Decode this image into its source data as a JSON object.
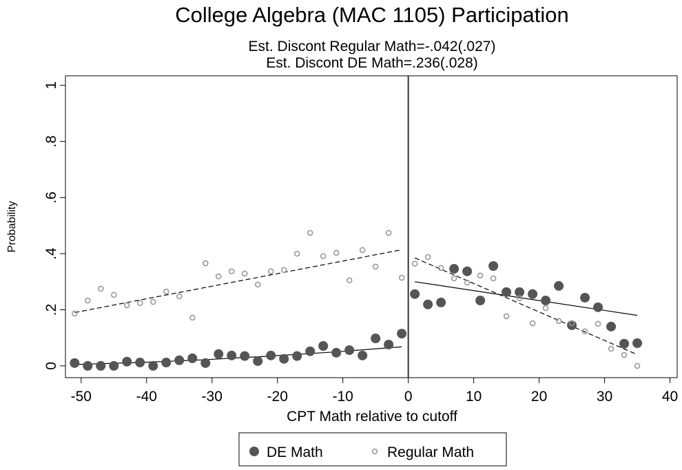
{
  "chart_data": {
    "type": "scatter",
    "title": "College Algebra (MAC 1105) Participation",
    "subtitles": [
      "Est. Discont Regular Math=-.042(.027)",
      "Est. Discont DE Math=.236(.028)"
    ],
    "x_label": "CPT Math relative to cutoff",
    "y_label": "Probability",
    "xlim": [
      -52.4,
      41.1
    ],
    "ylim": [
      -0.042,
      1.034
    ],
    "xticks": [
      -50,
      -40,
      -30,
      -20,
      -10,
      0,
      10,
      20,
      30,
      40
    ],
    "yticks": [
      0,
      {
        "value": 0.2,
        "label": ".2"
      },
      {
        "value": 0.4,
        "label": ".4"
      },
      {
        "value": 0.6,
        "label": ".6"
      },
      {
        "value": 0.8,
        "label": ".8"
      },
      1
    ],
    "cutoff": 0,
    "series": [
      {
        "name": "DE Math",
        "color": "#555555",
        "filled": true,
        "x": [
          -51,
          -49,
          -47,
          -45,
          -43,
          -41,
          -39,
          -37,
          -35,
          -33,
          -31,
          -29,
          -27,
          -25,
          -23,
          -21,
          -19,
          -17,
          -15,
          -13,
          -11,
          -9,
          -7,
          -5,
          -3,
          -1,
          1,
          3,
          5,
          7,
          9,
          11,
          13,
          15,
          17,
          19,
          21,
          23,
          25,
          27,
          29,
          31,
          33,
          35
        ],
        "values": [
          0.01,
          0,
          0,
          0,
          0.015,
          0.012,
          0,
          0.012,
          0.02,
          0.027,
          0.01,
          0.042,
          0.037,
          0.035,
          0.017,
          0.037,
          0.025,
          0.035,
          0.052,
          0.071,
          0.047,
          0.056,
          0.037,
          0.098,
          0.076,
          0.115,
          0.256,
          0.219,
          0.226,
          0.346,
          0.337,
          0.233,
          0.356,
          0.263,
          0.263,
          0.256,
          0.233,
          0.285,
          0.145,
          0.243,
          0.209,
          0.14,
          0.079,
          0.081
        ]
      },
      {
        "name": "Regular Math",
        "color": "#999999",
        "filled": false,
        "x": [
          -51,
          -49,
          -47,
          -45,
          -43,
          -41,
          -39,
          -37,
          -35,
          -33,
          -31,
          -29,
          -27,
          -25,
          -23,
          -21,
          -19,
          -17,
          -15,
          -13,
          -11,
          -9,
          -7,
          -5,
          -3,
          -1,
          1,
          3,
          5,
          7,
          9,
          11,
          13,
          15,
          17,
          19,
          21,
          23,
          25,
          27,
          29,
          31,
          33,
          35
        ],
        "values": [
          0.187,
          0.233,
          0.275,
          0.253,
          0.216,
          0.224,
          0.228,
          0.265,
          0.248,
          0.172,
          0.366,
          0.319,
          0.337,
          0.329,
          0.29,
          0.337,
          0.342,
          0.4,
          0.474,
          0.391,
          0.403,
          0.305,
          0.413,
          0.354,
          0.474,
          0.314,
          0.364,
          0.388,
          0.349,
          0.312,
          0.297,
          0.322,
          0.312,
          0.177,
          0.241,
          0.152,
          0.206,
          0.16,
          0.152,
          0.123,
          0.15,
          0.061,
          0.039,
          0
        ]
      }
    ],
    "fit_lines": [
      {
        "dash": false,
        "x": [
          -51,
          -41,
          -31,
          -21,
          -11,
          -1
        ],
        "values": [
          0.005,
          0.012,
          0.022,
          0.035,
          0.05,
          0.068
        ]
      },
      {
        "dash": false,
        "x": [
          1,
          35
        ],
        "values": [
          0.3,
          0.18
        ]
      },
      {
        "dash": true,
        "x": [
          -51,
          -1
        ],
        "values": [
          0.19,
          0.414
        ]
      },
      {
        "dash": true,
        "x": [
          1,
          35
        ],
        "values": [
          0.385,
          0.04
        ]
      }
    ]
  }
}
